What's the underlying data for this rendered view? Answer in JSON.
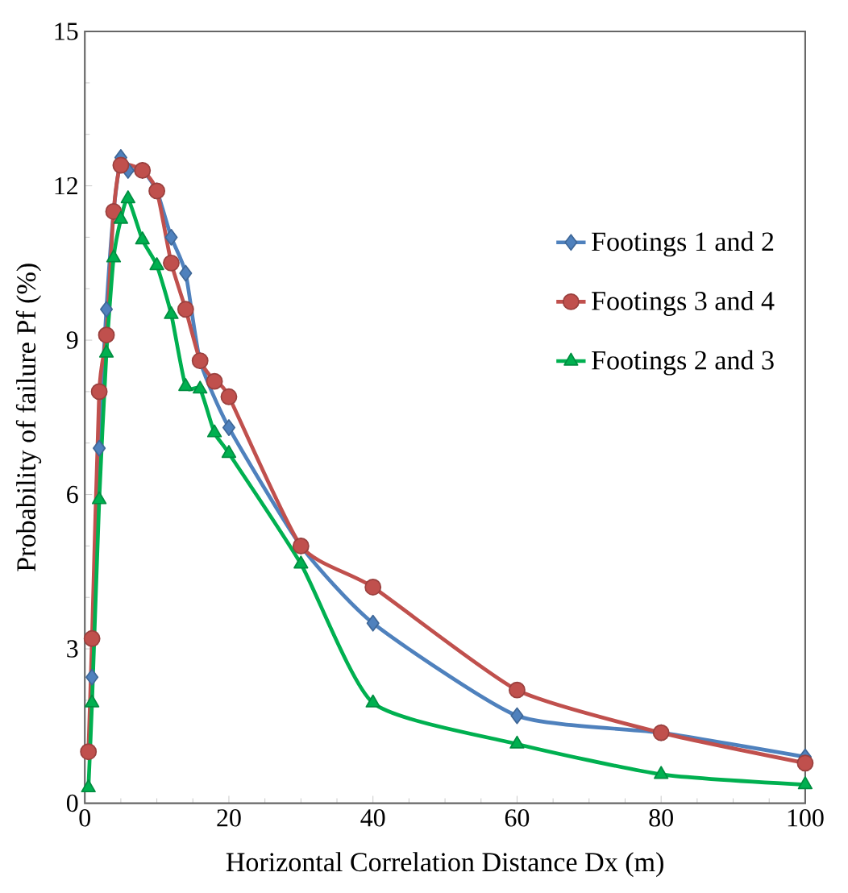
{
  "chart_data": {
    "type": "line",
    "xlabel": "Horizontal Correlation Distance Dx (m)",
    "ylabel": "Probability of failure Pf (%)",
    "xlim": [
      0,
      100
    ],
    "xticks": [
      0,
      20,
      40,
      60,
      80,
      100
    ],
    "ylim": [
      0,
      15
    ],
    "yticks": [
      0,
      3,
      6,
      9,
      12,
      15
    ],
    "grid": false,
    "legend": "right",
    "series": [
      {
        "name": "Footings 1 and 2",
        "color": "#4f81bd",
        "marker": "diamond",
        "x": [
          1,
          2,
          3,
          4,
          5,
          6,
          8,
          10,
          12,
          14,
          16,
          18,
          20,
          30,
          40,
          60,
          80,
          100
        ],
        "values": [
          2.45,
          6.9,
          9.6,
          11.5,
          12.55,
          12.3,
          12.3,
          11.9,
          11.0,
          10.3,
          8.6,
          null,
          7.3,
          5.0,
          3.5,
          1.7,
          1.37,
          0.9
        ]
      },
      {
        "name": "Footings 3 and 4",
        "color": "#c0504d",
        "marker": "circle",
        "x": [
          0.5,
          1,
          2,
          3,
          4,
          5,
          8,
          10,
          12,
          14,
          16,
          18,
          20,
          30,
          40,
          60,
          80,
          100
        ],
        "values": [
          1.0,
          3.2,
          8.0,
          9.1,
          11.5,
          12.4,
          12.3,
          11.9,
          10.5,
          9.6,
          8.6,
          8.2,
          7.9,
          5.0,
          4.2,
          2.2,
          1.37,
          0.78
        ]
      },
      {
        "name": "Footings 2 and 3",
        "color": "#00b050",
        "marker": "triangle",
        "x": [
          0.5,
          1,
          2,
          3,
          4,
          5,
          6,
          8,
          10,
          12,
          14,
          16,
          18,
          20,
          30,
          40,
          60,
          80,
          100
        ],
        "values": [
          0.3,
          1.95,
          5.9,
          8.75,
          10.6,
          11.35,
          11.75,
          10.95,
          10.45,
          9.5,
          8.1,
          8.05,
          7.2,
          6.8,
          4.65,
          1.95,
          1.15,
          0.56,
          0.36
        ]
      }
    ]
  }
}
